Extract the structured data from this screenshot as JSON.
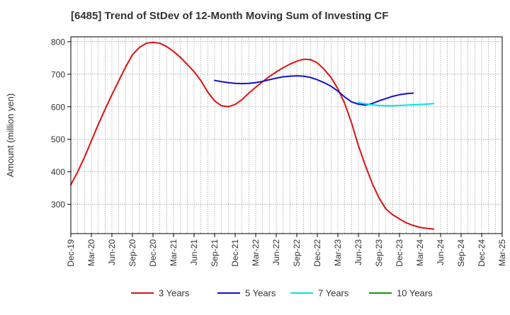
{
  "chart_data": {
    "type": "line",
    "title": "[6485]  Trend of StDev of 12-Month Moving Sum of Investing CF",
    "ylabel": "Amount (million yen)",
    "xlabel": "",
    "ylim": [
      210,
      815
    ],
    "yticks": [
      300,
      400,
      500,
      600,
      700,
      800
    ],
    "x_tick_labels": [
      "Dec-19",
      "Mar-20",
      "Jun-20",
      "Sep-20",
      "Dec-20",
      "Mar-21",
      "Jun-21",
      "Sep-21",
      "Dec-21",
      "Mar-22",
      "Jun-22",
      "Sep-22",
      "Dec-22",
      "Mar-23",
      "Jun-23",
      "Sep-23",
      "Dec-23",
      "Mar-24",
      "Jun-24",
      "Sep-24",
      "Dec-24",
      "Mar-25"
    ],
    "grid": true,
    "legend_position": "bottom",
    "series": [
      {
        "name": "3 Years",
        "color": "#dd1111",
        "points": [
          [
            "Dec-19",
            360
          ],
          [
            "Jan-20",
            400
          ],
          [
            "Feb-20",
            445
          ],
          [
            "Mar-20",
            495
          ],
          [
            "Apr-20",
            545
          ],
          [
            "May-20",
            592
          ],
          [
            "Jun-20",
            637
          ],
          [
            "Jul-20",
            680
          ],
          [
            "Aug-20",
            722
          ],
          [
            "Sep-20",
            760
          ],
          [
            "Oct-20",
            782
          ],
          [
            "Nov-20",
            795
          ],
          [
            "Dec-20",
            798
          ],
          [
            "Jan-21",
            795
          ],
          [
            "Feb-21",
            785
          ],
          [
            "Mar-21",
            770
          ],
          [
            "Apr-21",
            752
          ],
          [
            "May-21",
            730
          ],
          [
            "Jun-21",
            708
          ],
          [
            "Jul-21",
            680
          ],
          [
            "Aug-21",
            645
          ],
          [
            "Sep-21",
            618
          ],
          [
            "Oct-21",
            603
          ],
          [
            "Nov-21",
            600
          ],
          [
            "Dec-21",
            607
          ],
          [
            "Jan-22",
            622
          ],
          [
            "Feb-22",
            642
          ],
          [
            "Mar-22",
            660
          ],
          [
            "Apr-22",
            677
          ],
          [
            "May-22",
            693
          ],
          [
            "Jun-22",
            707
          ],
          [
            "Jul-22",
            720
          ],
          [
            "Aug-22",
            731
          ],
          [
            "Sep-22",
            740
          ],
          [
            "Oct-22",
            746
          ],
          [
            "Nov-22",
            745
          ],
          [
            "Dec-22",
            735
          ],
          [
            "Jan-23",
            715
          ],
          [
            "Feb-23",
            690
          ],
          [
            "Mar-23",
            655
          ],
          [
            "Apr-23",
            610
          ],
          [
            "May-23",
            550
          ],
          [
            "Jun-23",
            480
          ],
          [
            "Jul-23",
            420
          ],
          [
            "Aug-23",
            365
          ],
          [
            "Sep-23",
            320
          ],
          [
            "Oct-23",
            286
          ],
          [
            "Nov-23",
            268
          ],
          [
            "Dec-23",
            255
          ],
          [
            "Jan-24",
            243
          ],
          [
            "Feb-24",
            235
          ],
          [
            "Mar-24",
            229
          ],
          [
            "Apr-24",
            226
          ],
          [
            "May-24",
            224
          ]
        ]
      },
      {
        "name": "5 Years",
        "color": "#1111cc",
        "points": [
          [
            "Sep-21",
            681
          ],
          [
            "Oct-21",
            677
          ],
          [
            "Nov-21",
            674
          ],
          [
            "Dec-21",
            672
          ],
          [
            "Jan-22",
            671
          ],
          [
            "Feb-22",
            672
          ],
          [
            "Mar-22",
            674
          ],
          [
            "Apr-22",
            678
          ],
          [
            "May-22",
            683
          ],
          [
            "Jun-22",
            688
          ],
          [
            "Jul-22",
            692
          ],
          [
            "Aug-22",
            694
          ],
          [
            "Sep-22",
            695
          ],
          [
            "Oct-22",
            694
          ],
          [
            "Nov-22",
            690
          ],
          [
            "Dec-22",
            683
          ],
          [
            "Jan-23",
            674
          ],
          [
            "Feb-23",
            663
          ],
          [
            "Mar-23",
            648
          ],
          [
            "Apr-23",
            630
          ],
          [
            "May-23",
            615
          ],
          [
            "Jun-23",
            608
          ],
          [
            "Jul-23",
            605
          ],
          [
            "Aug-23",
            610
          ],
          [
            "Sep-23",
            618
          ],
          [
            "Oct-23",
            625
          ],
          [
            "Nov-23",
            632
          ],
          [
            "Dec-23",
            637
          ],
          [
            "Jan-24",
            640
          ],
          [
            "Feb-24",
            642
          ]
        ]
      },
      {
        "name": "7 Years",
        "color": "#00e5e5",
        "points": [
          [
            "Jun-23",
            613
          ],
          [
            "Jul-23",
            609
          ],
          [
            "Aug-23",
            606
          ],
          [
            "Sep-23",
            604
          ],
          [
            "Oct-23",
            603
          ],
          [
            "Nov-23",
            603
          ],
          [
            "Dec-23",
            604
          ],
          [
            "Jan-24",
            605
          ],
          [
            "Feb-24",
            606
          ],
          [
            "Mar-24",
            607
          ],
          [
            "Apr-24",
            608
          ],
          [
            "May-24",
            610
          ]
        ]
      },
      {
        "name": "10 Years",
        "color": "#119911",
        "points": []
      }
    ]
  }
}
